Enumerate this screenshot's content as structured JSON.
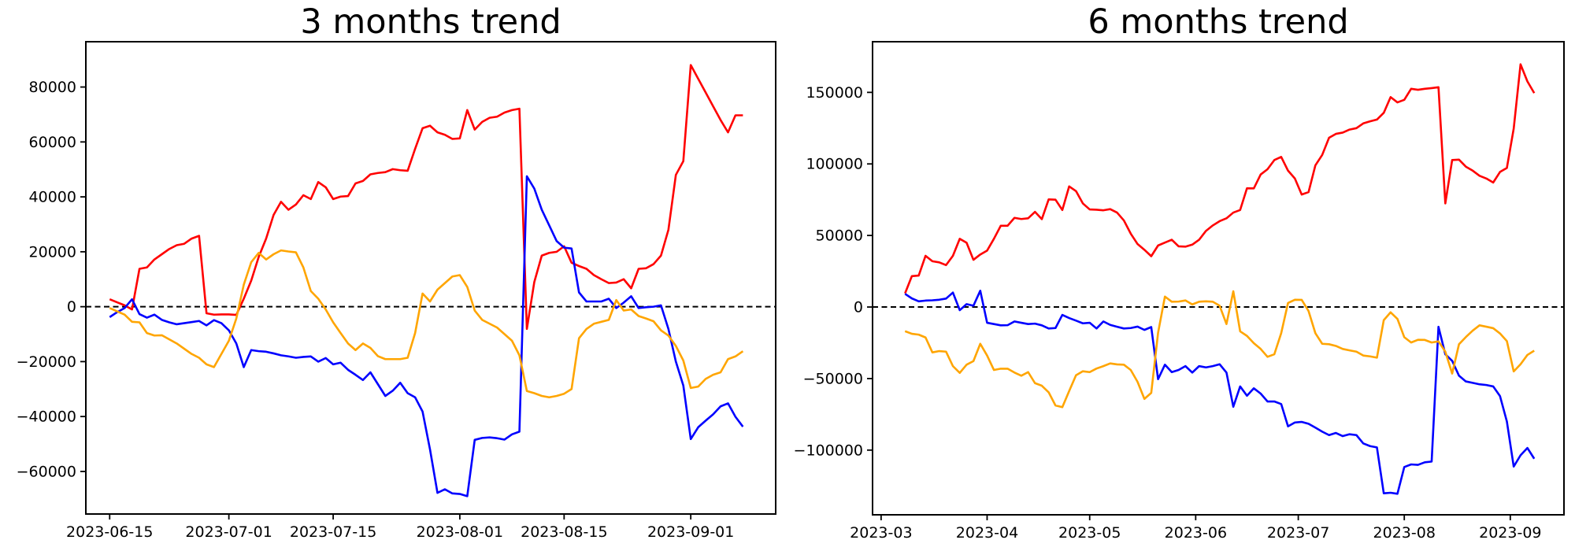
{
  "figure": {
    "background": "#ffffff"
  },
  "chart_data": [
    {
      "type": "line",
      "title": "3 months trend",
      "xlabel": "",
      "ylabel": "",
      "grid": false,
      "legend": null,
      "zero_line": {
        "show": true,
        "color": "#000000",
        "style": "dashed"
      },
      "x_unit": "days since 2023-06-15",
      "start_date": "2023-06-15",
      "end_date": "2023-09-08",
      "x_start": 0,
      "x_step": 1,
      "xlim": [
        -3.2,
        89.4
      ],
      "ylim": [
        -75500,
        96500
      ],
      "x_ticks": [
        {
          "day": 0,
          "label": "2023-06-15"
        },
        {
          "day": 16,
          "label": "2023-07-01"
        },
        {
          "day": 30,
          "label": "2023-07-15"
        },
        {
          "day": 47,
          "label": "2023-08-01"
        },
        {
          "day": 61,
          "label": "2023-08-15"
        },
        {
          "day": 78,
          "label": "2023-09-01"
        }
      ],
      "y_ticks": [
        {
          "value": 80000,
          "label": "80000"
        },
        {
          "value": 60000,
          "label": "60000"
        },
        {
          "value": 40000,
          "label": "40000"
        },
        {
          "value": 20000,
          "label": "20000"
        },
        {
          "value": 0,
          "label": "0"
        },
        {
          "value": -20000,
          "label": "−20000"
        },
        {
          "value": -40000,
          "label": "−40000"
        },
        {
          "value": -60000,
          "label": "−60000"
        }
      ],
      "series": [
        {
          "name": "red",
          "color": "#ff0000",
          "values": [
            2700,
            1600,
            500,
            -1000,
            13800,
            14300,
            17200,
            19100,
            21000,
            22400,
            22900,
            24800,
            25800,
            -2400,
            -2900,
            -2800,
            -2800,
            -3000,
            2900,
            9500,
            18100,
            24800,
            33400,
            38200,
            35300,
            37200,
            40600,
            39200,
            45400,
            43500,
            39200,
            40100,
            40300,
            44900,
            45800,
            48200,
            48700,
            49000,
            50100,
            49700,
            49500,
            57500,
            65000,
            65900,
            63500,
            62600,
            61100,
            61300,
            71600,
            64500,
            67300,
            68800,
            69200,
            70700,
            71600,
            72100,
            -8100,
            9000,
            18600,
            19600,
            20000,
            22000,
            16000,
            14800,
            13800,
            11500,
            10000,
            8600,
            8800,
            10000,
            6700,
            13800,
            14000,
            15500,
            18600,
            28000,
            48000,
            53000,
            88000,
            83000,
            78000,
            73000,
            68000,
            63500,
            69700,
            69700
          ]
        },
        {
          "name": "blue",
          "color": "#0000ff",
          "values": [
            -3800,
            -2000,
            -500,
            2700,
            -2700,
            -4000,
            -2900,
            -4800,
            -5700,
            -6400,
            -6000,
            -5600,
            -5200,
            -6800,
            -4900,
            -6000,
            -8600,
            -13400,
            -22000,
            -15800,
            -16200,
            -16400,
            -17000,
            -17700,
            -18100,
            -18600,
            -18300,
            -18100,
            -20000,
            -18700,
            -21000,
            -20400,
            -23000,
            -24800,
            -26700,
            -23900,
            -28200,
            -32500,
            -30600,
            -27700,
            -31500,
            -33000,
            -38200,
            -52000,
            -67800,
            -66500,
            -68000,
            -68200,
            -69000,
            -48500,
            -47800,
            -47600,
            -47900,
            -48400,
            -46500,
            -45500,
            47500,
            43000,
            35300,
            29600,
            23900,
            21500,
            21200,
            5200,
            1900,
            1900,
            1900,
            2900,
            -500,
            1500,
            3800,
            -500,
            -200,
            0,
            500,
            -8100,
            -20000,
            -28700,
            -48200,
            -43900,
            -41500,
            -39200,
            -36300,
            -35200,
            -40100,
            -43700
          ]
        },
        {
          "name": "orange",
          "color": "#ffa500",
          "values": [
            -500,
            -1700,
            -2900,
            -5500,
            -5700,
            -9600,
            -10500,
            -10400,
            -11900,
            -13400,
            -15300,
            -17200,
            -18600,
            -21000,
            -22000,
            -17200,
            -12400,
            -4300,
            8000,
            16200,
            19600,
            17200,
            19100,
            20500,
            20100,
            19800,
            14300,
            5700,
            2900,
            -1000,
            -5700,
            -9600,
            -13400,
            -15800,
            -13400,
            -15000,
            -18000,
            -19100,
            -19100,
            -19100,
            -18600,
            -9600,
            4800,
            1900,
            6200,
            8600,
            11000,
            11500,
            7200,
            -1400,
            -4800,
            -6200,
            -7600,
            -10000,
            -12400,
            -17700,
            -30700,
            -31500,
            -32500,
            -33000,
            -32500,
            -31700,
            -30000,
            -11500,
            -8100,
            -6200,
            -5500,
            -4800,
            2400,
            -1400,
            -1000,
            -3400,
            -4300,
            -5300,
            -8600,
            -10500,
            -14300,
            -19600,
            -29600,
            -29100,
            -26300,
            -24800,
            -23900,
            -19100,
            -18100,
            -16200
          ]
        }
      ]
    },
    {
      "type": "line",
      "title": "6 months trend",
      "xlabel": "",
      "ylabel": "",
      "grid": false,
      "legend": null,
      "zero_line": {
        "show": true,
        "color": "#000000",
        "style": "dashed"
      },
      "x_unit": "days since 2023-03-08",
      "start_date": "2023-03-08",
      "end_date": "2023-09-08",
      "x_start": 0,
      "x_step": 2,
      "xlim": [
        -9.5,
        192.7
      ],
      "ylim": [
        -145200,
        185400
      ],
      "x_ticks": [
        {
          "day": -7,
          "label": "2023-03"
        },
        {
          "day": 24,
          "label": "2023-04"
        },
        {
          "day": 54,
          "label": "2023-05"
        },
        {
          "day": 85,
          "label": "2023-06"
        },
        {
          "day": 115,
          "label": "2023-07"
        },
        {
          "day": 146,
          "label": "2023-08"
        },
        {
          "day": 177,
          "label": "2023-09"
        }
      ],
      "y_ticks": [
        {
          "value": 150000,
          "label": "150000"
        },
        {
          "value": 100000,
          "label": "100000"
        },
        {
          "value": 50000,
          "label": "50000"
        },
        {
          "value": 0,
          "label": "0"
        },
        {
          "value": -50000,
          "label": "−50000"
        },
        {
          "value": -100000,
          "label": "−100000"
        }
      ],
      "series": [
        {
          "name": "red",
          "color": "#ff0000",
          "values": [
            9500,
            21600,
            22000,
            35800,
            32000,
            31200,
            29300,
            35800,
            47700,
            44900,
            33000,
            36700,
            39400,
            47700,
            56800,
            56800,
            62300,
            61500,
            62000,
            66500,
            61400,
            75200,
            75000,
            67800,
            84300,
            81000,
            72400,
            68200,
            68000,
            67600,
            68400,
            66000,
            60500,
            51300,
            44000,
            40000,
            35500,
            43000,
            45000,
            47000,
            42400,
            42200,
            43600,
            47000,
            53200,
            57000,
            60000,
            62000,
            66000,
            67800,
            83000,
            82900,
            92600,
            96300,
            102700,
            104900,
            95300,
            89800,
            78600,
            80300,
            99000,
            106300,
            118300,
            121000,
            121900,
            124000,
            125000,
            128300,
            129800,
            131000,
            135700,
            146700,
            143000,
            144800,
            152500,
            151800,
            152500,
            153000,
            153600,
            72400,
            102700,
            103000,
            98100,
            95300,
            91700,
            89800,
            87000,
            94400,
            97200,
            124700,
            169600,
            157700,
            149500
          ]
        },
        {
          "name": "blue",
          "color": "#0000ff",
          "values": [
            9200,
            6000,
            4000,
            4500,
            4700,
            5100,
            5900,
            10100,
            -2200,
            2000,
            900,
            11400,
            -11000,
            -11900,
            -12800,
            -12700,
            -10100,
            -11000,
            -11900,
            -11600,
            -12800,
            -15000,
            -14700,
            -5500,
            -7700,
            -9500,
            -11400,
            -11000,
            -15000,
            -10100,
            -12500,
            -13800,
            -15000,
            -14700,
            -13700,
            -16000,
            -14000,
            -50400,
            -40300,
            -45500,
            -44000,
            -41300,
            -45800,
            -41300,
            -42200,
            -41300,
            -40000,
            -45800,
            -69700,
            -55500,
            -62000,
            -56800,
            -60500,
            -66000,
            -66000,
            -67800,
            -83400,
            -80700,
            -80300,
            -81600,
            -84300,
            -87100,
            -89500,
            -88000,
            -90200,
            -88900,
            -89500,
            -95300,
            -97200,
            -98100,
            -130200,
            -129800,
            -130500,
            -111800,
            -110000,
            -110300,
            -108500,
            -108000,
            -13800,
            -33000,
            -37600,
            -48000,
            -52000,
            -53000,
            -54000,
            -54500,
            -55500,
            -62300,
            -80000,
            -111500,
            -103600,
            -98500,
            -106000
          ]
        },
        {
          "name": "orange",
          "color": "#ffa500",
          "values": [
            -16900,
            -18700,
            -19300,
            -21300,
            -31700,
            -30800,
            -31200,
            -41300,
            -46000,
            -40300,
            -37800,
            -25700,
            -33900,
            -44000,
            -43100,
            -43100,
            -45800,
            -48000,
            -45500,
            -53200,
            -55000,
            -59600,
            -68800,
            -70000,
            -58700,
            -47700,
            -44900,
            -45500,
            -43000,
            -41300,
            -39400,
            -40100,
            -40300,
            -44000,
            -52300,
            -64200,
            -60000,
            -18000,
            7300,
            3700,
            3800,
            4600,
            1800,
            3700,
            4000,
            3700,
            900,
            -11900,
            11000,
            -17000,
            -20200,
            -25300,
            -29300,
            -34800,
            -33000,
            -18300,
            2800,
            5100,
            5000,
            -2800,
            -18300,
            -25700,
            -26000,
            -27200,
            -29300,
            -30300,
            -31200,
            -33900,
            -34500,
            -35400,
            -9200,
            -3700,
            -8300,
            -21100,
            -24800,
            -22900,
            -23000,
            -24800,
            -24000,
            -31200,
            -46500,
            -26000,
            -21000,
            -16500,
            -12800,
            -13750,
            -14800,
            -18500,
            -23800,
            -45000,
            -40000,
            -33500,
            -30500
          ]
        }
      ]
    }
  ]
}
